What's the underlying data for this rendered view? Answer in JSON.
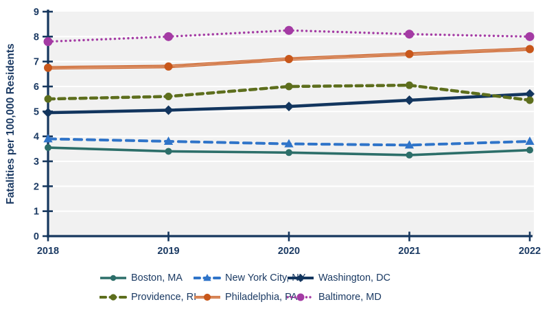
{
  "chart_data": {
    "type": "line",
    "title": "",
    "x": [
      "2018",
      "2019",
      "2020",
      "2021",
      "2022"
    ],
    "xlabel": "",
    "ylabel": "Fatalities per 100,000 Residents",
    "ylim": [
      0,
      9
    ],
    "ytick_interval": 1,
    "yticks": [
      "0",
      "1",
      "2",
      "3",
      "4",
      "5",
      "6",
      "7",
      "8",
      "9"
    ],
    "grid": "horizontal",
    "grid_color": "#ffffff",
    "plot_background": "#f1f1f1",
    "axis_color": "#16375e",
    "label_color": "#1b3a63",
    "legend_position": "bottom",
    "series": [
      {
        "name": "Boston, MA",
        "values": [
          3.55,
          3.4,
          3.35,
          3.25,
          3.45
        ],
        "color": "#2c6e69",
        "line_style": "solid",
        "line_width": 3.6,
        "marker": "circle",
        "marker_size": 5
      },
      {
        "name": "New York City, NY",
        "values": [
          3.9,
          3.8,
          3.7,
          3.65,
          3.8
        ],
        "color": "#2f74c9",
        "line_style": "dashed",
        "line_width": 4,
        "marker": "triangle",
        "marker_size": 7,
        "dash": "11 8"
      },
      {
        "name": "Washington, DC",
        "values": [
          4.95,
          5.05,
          5.2,
          5.45,
          5.7
        ],
        "color": "#12355e",
        "line_style": "solid",
        "line_width": 4.5,
        "marker": "diamond",
        "marker_size": 7
      },
      {
        "name": "Providence, RI",
        "values": [
          5.5,
          5.6,
          6.0,
          6.05,
          5.45
        ],
        "color": "#5d6e1d",
        "line_style": "dashed",
        "line_width": 4.5,
        "marker": "circle",
        "marker_size": 5.5,
        "dash": "9 6.5"
      },
      {
        "name": "Philadelphia, PA",
        "values": [
          6.75,
          6.8,
          7.1,
          7.3,
          7.5
        ],
        "color": "#c8571b",
        "line_style": "double",
        "line_width": 5,
        "marker": "circle",
        "marker_size": 6,
        "inner_color": "#f4e0d0"
      },
      {
        "name": "Baltimore, MD",
        "values": [
          7.8,
          8.0,
          8.25,
          8.1,
          8.0
        ],
        "color": "#a43ba4",
        "line_style": "dotted",
        "line_width": 3.4,
        "marker": "circle",
        "marker_size": 6.5,
        "dash": "0 6.5"
      }
    ]
  }
}
